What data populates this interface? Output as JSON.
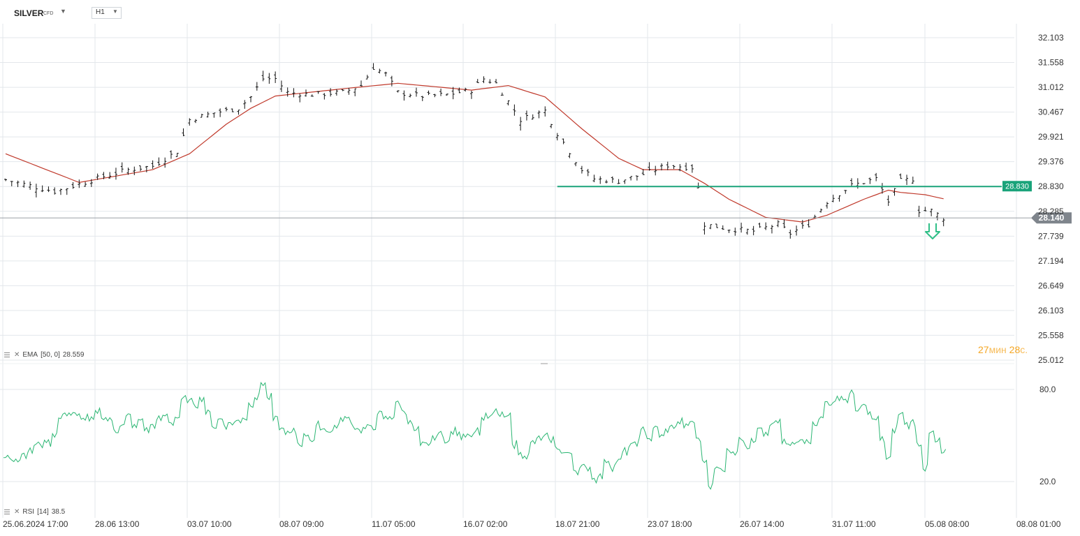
{
  "header": {
    "symbol": "SILVER",
    "symbol_tag": "CFD",
    "timeframe": "H1"
  },
  "indicators": {
    "ema_label": "EMA",
    "ema_params": "[50, 0]",
    "ema_value": "28.559",
    "rsi_label": "RSI",
    "rsi_params": "[14]",
    "rsi_value": "38.5"
  },
  "countdown": {
    "minutes": "27",
    "min_unit": "мин",
    "seconds": "28",
    "sec_unit": "с."
  },
  "colors": {
    "candles": "#111111",
    "ema": "#c0392b",
    "rsi": "#2bb673",
    "level_line": "#1aa37a",
    "level_badge": "#1aa37a",
    "price_line": "#9aa0a6",
    "price_badge": "#7f858c",
    "arrow": "#2fbf87",
    "grid": "#e3e7eb",
    "axis_text": "#333333"
  },
  "chart_data": [
    {
      "type": "candlestick",
      "timeframe": "H1",
      "ylim": [
        25.012,
        32.103
      ],
      "y_ticks": [
        "32.103",
        "31.558",
        "31.012",
        "30.467",
        "29.921",
        "29.376",
        "28.830",
        "28.285",
        "27.739",
        "27.194",
        "26.649",
        "26.103",
        "25.558",
        "25.012"
      ],
      "x_ticks": [
        "25.06.2024  17:00",
        "28.06  13:00",
        "03.07  10:00",
        "08.07  09:00",
        "11.07  05:00",
        "16.07  02:00",
        "18.07  21:00",
        "23.07  18:00",
        "26.07  14:00",
        "31.07  11:00",
        "05.08  08:00",
        "08.08  01:00"
      ],
      "close_path": [
        [
          0,
          28.98
        ],
        [
          4,
          28.85
        ],
        [
          8,
          28.72
        ],
        [
          12,
          28.88
        ],
        [
          16,
          29.05
        ],
        [
          20,
          29.2
        ],
        [
          24,
          29.28
        ],
        [
          28,
          29.6
        ],
        [
          30,
          30.3
        ],
        [
          34,
          30.45
        ],
        [
          38,
          30.55
        ],
        [
          40,
          30.8
        ],
        [
          42,
          31.2
        ],
        [
          44,
          31.2
        ],
        [
          46,
          30.9
        ],
        [
          50,
          30.85
        ],
        [
          55,
          30.9
        ],
        [
          58,
          31.05
        ],
        [
          60,
          31.45
        ],
        [
          62,
          31.3
        ],
        [
          64,
          30.9
        ],
        [
          68,
          30.82
        ],
        [
          72,
          30.85
        ],
        [
          76,
          30.95
        ],
        [
          78,
          31.2
        ],
        [
          80,
          31.1
        ],
        [
          84,
          30.3
        ],
        [
          88,
          30.5
        ],
        [
          90,
          30.0
        ],
        [
          94,
          29.2
        ],
        [
          96,
          29.0
        ],
        [
          100,
          28.95
        ],
        [
          104,
          29.1
        ],
        [
          108,
          29.3
        ],
        [
          112,
          29.25
        ],
        [
          113,
          28.8
        ],
        [
          114,
          28.0
        ],
        [
          118,
          27.9
        ],
        [
          122,
          27.85
        ],
        [
          126,
          28.0
        ],
        [
          128,
          27.8
        ],
        [
          131,
          28.0
        ],
        [
          134,
          28.5
        ],
        [
          138,
          28.85
        ],
        [
          142,
          29.0
        ],
        [
          144,
          28.5
        ],
        [
          146,
          28.95
        ],
        [
          148,
          29.0
        ],
        [
          149,
          28.3
        ],
        [
          151,
          28.3
        ],
        [
          153,
          28.14
        ]
      ],
      "ema_path": [
        [
          0,
          29.55
        ],
        [
          12,
          28.92
        ],
        [
          24,
          29.2
        ],
        [
          30,
          29.55
        ],
        [
          36,
          30.2
        ],
        [
          40,
          30.55
        ],
        [
          44,
          30.82
        ],
        [
          55,
          30.98
        ],
        [
          64,
          31.1
        ],
        [
          76,
          30.95
        ],
        [
          82,
          31.05
        ],
        [
          88,
          30.8
        ],
        [
          94,
          30.1
        ],
        [
          100,
          29.45
        ],
        [
          104,
          29.2
        ],
        [
          110,
          29.2
        ],
        [
          114,
          28.9
        ],
        [
          118,
          28.55
        ],
        [
          124,
          28.15
        ],
        [
          130,
          28.05
        ],
        [
          134,
          28.2
        ],
        [
          140,
          28.55
        ],
        [
          144,
          28.75
        ],
        [
          146,
          28.7
        ],
        [
          150,
          28.65
        ],
        [
          153,
          28.56
        ]
      ],
      "ema_last": 28.559,
      "level": 28.83,
      "level_label": "28.830",
      "level_start_index": 90,
      "last_price": 28.14,
      "last_price_label": "28.140",
      "forecast": "down",
      "bar_count": 154
    },
    {
      "type": "line",
      "name": "RSI",
      "ylim": [
        5,
        95
      ],
      "y_ticks": [
        "80.0",
        "20.0"
      ],
      "path": [
        [
          0,
          35
        ],
        [
          4,
          42
        ],
        [
          8,
          52
        ],
        [
          10,
          68
        ],
        [
          12,
          60
        ],
        [
          14,
          58
        ],
        [
          16,
          66
        ],
        [
          18,
          56
        ],
        [
          20,
          60
        ],
        [
          24,
          55
        ],
        [
          26,
          60
        ],
        [
          28,
          62
        ],
        [
          30,
          76
        ],
        [
          32,
          72
        ],
        [
          34,
          60
        ],
        [
          38,
          58
        ],
        [
          40,
          70
        ],
        [
          42,
          85
        ],
        [
          44,
          60
        ],
        [
          46,
          55
        ],
        [
          48,
          45
        ],
        [
          52,
          55
        ],
        [
          56,
          58
        ],
        [
          58,
          52
        ],
        [
          62,
          62
        ],
        [
          64,
          68
        ],
        [
          66,
          60
        ],
        [
          68,
          40
        ],
        [
          72,
          50
        ],
        [
          76,
          55
        ],
        [
          80,
          65
        ],
        [
          82,
          58
        ],
        [
          84,
          40
        ],
        [
          88,
          46
        ],
        [
          92,
          35
        ],
        [
          94,
          28
        ],
        [
          96,
          25
        ],
        [
          100,
          35
        ],
        [
          104,
          50
        ],
        [
          108,
          52
        ],
        [
          112,
          60
        ],
        [
          114,
          30
        ],
        [
          115,
          22
        ],
        [
          118,
          38
        ],
        [
          122,
          50
        ],
        [
          126,
          55
        ],
        [
          128,
          40
        ],
        [
          132,
          55
        ],
        [
          134,
          72
        ],
        [
          136,
          74
        ],
        [
          138,
          75
        ],
        [
          140,
          65
        ],
        [
          142,
          58
        ],
        [
          144,
          35
        ],
        [
          146,
          65
        ],
        [
          148,
          56
        ],
        [
          150,
          32
        ],
        [
          151,
          50
        ],
        [
          153,
          38.5
        ]
      ],
      "last": 38.5
    }
  ]
}
